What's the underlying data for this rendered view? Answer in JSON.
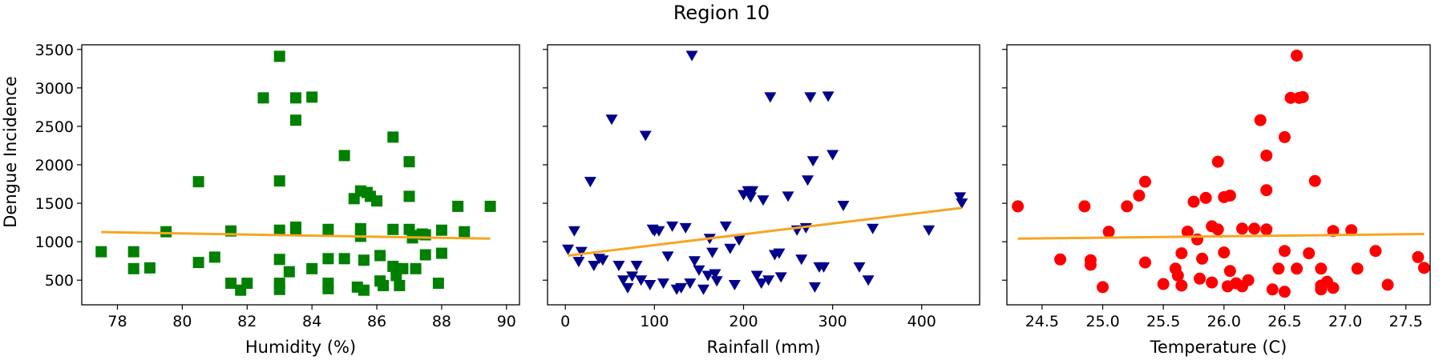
{
  "figure_title": "Region 10",
  "shared_ylabel": "Dengue Incidence",
  "colors": {
    "trend": "#f5a623",
    "humidity_marker": "#008000",
    "rainfall_marker": "#00008b",
    "temperature_marker": "#ff0000"
  },
  "chart_data": [
    {
      "type": "scatter",
      "marker": "square",
      "color": "#008000",
      "xlabel": "Humidity (%)",
      "ylabel": "Dengue Incidence",
      "xlim": [
        76.9,
        90.4
      ],
      "ylim": [
        180,
        3560
      ],
      "xticks": [
        78,
        80,
        82,
        84,
        86,
        88,
        90
      ],
      "yticks": [
        500,
        1000,
        1500,
        2000,
        2500,
        3000,
        3500
      ],
      "trend_line": {
        "x": [
          77.5,
          89.5
        ],
        "y": [
          1125,
          1040
        ]
      },
      "x": [
        77.5,
        78.5,
        78.5,
        79.0,
        79.5,
        80.5,
        80.5,
        81.0,
        81.5,
        81.5,
        81.8,
        82.0,
        82.5,
        83.0,
        83.0,
        83.0,
        83.0,
        83.0,
        83.0,
        83.3,
        83.5,
        83.5,
        83.5,
        83.5,
        84.0,
        84.0,
        84.5,
        84.5,
        84.5,
        84.5,
        85.0,
        85.0,
        85.3,
        85.4,
        85.5,
        85.5,
        85.5,
        85.6,
        85.6,
        85.7,
        85.8,
        86.0,
        86.1,
        86.1,
        86.2,
        86.5,
        86.5,
        86.5,
        86.6,
        86.6,
        86.7,
        86.8,
        87.0,
        87.0,
        87.0,
        87.1,
        87.1,
        87.2,
        87.4,
        87.5,
        87.5,
        87.9,
        88.0,
        88.0,
        88.5,
        88.7,
        89.5
      ],
      "y": [
        870,
        870,
        650,
        660,
        1130,
        1780,
        730,
        800,
        1140,
        460,
        370,
        460,
        2870,
        3410,
        1790,
        1150,
        770,
        460,
        380,
        610,
        2870,
        2580,
        1190,
        1160,
        2880,
        650,
        1160,
        780,
        460,
        390,
        2120,
        780,
        1560,
        410,
        1660,
        1170,
        1070,
        370,
        760,
        1640,
        1590,
        1530,
        820,
        490,
        430,
        2360,
        1160,
        680,
        650,
        560,
        430,
        650,
        2040,
        1590,
        1160,
        1080,
        1050,
        650,
        1100,
        1090,
        830,
        460,
        1150,
        850,
        1460,
        1130,
        1460
      ]
    },
    {
      "type": "scatter",
      "marker": "triangle-down",
      "color": "#00008b",
      "xlabel": "Rainfall (mm)",
      "ylabel": "",
      "xlim": [
        -20,
        465
      ],
      "ylim": [
        180,
        3560
      ],
      "xticks": [
        0,
        100,
        200,
        300,
        400
      ],
      "yticks": [
        500,
        1000,
        1500,
        2000,
        2500,
        3000,
        3500
      ],
      "trend_line": {
        "x": [
          3,
          445
        ],
        "y": [
          820,
          1440
        ]
      },
      "x": [
        3,
        10,
        15,
        18,
        28,
        32,
        38,
        42,
        52,
        60,
        65,
        70,
        75,
        80,
        85,
        90,
        95,
        98,
        100,
        105,
        110,
        115,
        120,
        125,
        130,
        135,
        140,
        142,
        145,
        150,
        155,
        160,
        162,
        165,
        168,
        170,
        180,
        185,
        190,
        195,
        200,
        205,
        208,
        210,
        215,
        220,
        222,
        228,
        230,
        235,
        240,
        242,
        250,
        260,
        265,
        270,
        272,
        275,
        278,
        280,
        285,
        290,
        295,
        300,
        312,
        330,
        340,
        345,
        408,
        443,
        445
      ],
      "y": [
        900,
        1140,
        740,
        870,
        1780,
        690,
        780,
        760,
        2590,
        690,
        500,
        400,
        550,
        690,
        500,
        2380,
        440,
        1160,
        1140,
        1140,
        460,
        810,
        1200,
        380,
        400,
        1180,
        460,
        3420,
        750,
        630,
        380,
        560,
        1040,
        860,
        580,
        490,
        1200,
        910,
        440,
        1020,
        1610,
        1660,
        1580,
        1660,
        560,
        460,
        1540,
        500,
        2880,
        830,
        850,
        540,
        1590,
        1150,
        770,
        1180,
        1800,
        2880,
        2050,
        410,
        670,
        670,
        2890,
        2130,
        1470,
        670,
        500,
        1170,
        1150,
        1580,
        1500
      ]
    },
    {
      "type": "scatter",
      "marker": "circle",
      "color": "#ff0000",
      "xlabel": "Temperature (C)",
      "ylabel": "",
      "xlim": [
        24.21,
        27.7
      ],
      "ylim": [
        180,
        3560
      ],
      "xticks": [
        24.5,
        25.0,
        25.5,
        26.0,
        26.5,
        27.0,
        27.5
      ],
      "yticks": [
        500,
        1000,
        1500,
        2000,
        2500,
        3000,
        3500
      ],
      "trend_line": {
        "x": [
          24.3,
          27.65
        ],
        "y": [
          1040,
          1100
        ]
      },
      "x": [
        24.3,
        24.65,
        24.85,
        24.9,
        24.9,
        25.0,
        25.05,
        25.2,
        25.3,
        25.35,
        25.35,
        25.5,
        25.6,
        25.62,
        25.65,
        25.65,
        25.7,
        25.7,
        25.75,
        25.78,
        25.8,
        25.82,
        25.85,
        25.9,
        25.9,
        25.95,
        25.95,
        26.0,
        26.0,
        26.03,
        26.05,
        26.05,
        26.1,
        26.15,
        26.15,
        26.2,
        26.25,
        26.3,
        26.35,
        26.35,
        26.35,
        26.4,
        26.45,
        26.5,
        26.5,
        26.5,
        26.55,
        26.6,
        26.6,
        26.62,
        26.65,
        26.7,
        26.75,
        26.8,
        26.8,
        26.8,
        26.85,
        26.9,
        26.9,
        27.05,
        27.1,
        27.25,
        27.35,
        27.6,
        27.65
      ],
      "y": [
        1460,
        770,
        1460,
        760,
        700,
        410,
        1130,
        1460,
        1600,
        1780,
        730,
        450,
        650,
        560,
        850,
        430,
        1130,
        1130,
        1520,
        1030,
        520,
        780,
        1570,
        1200,
        470,
        2040,
        1160,
        1580,
        860,
        420,
        1600,
        620,
        460,
        1170,
        420,
        500,
        1170,
        2580,
        1160,
        2120,
        1670,
        380,
        650,
        350,
        2360,
        880,
        2870,
        3420,
        650,
        2870,
        2880,
        850,
        1790,
        650,
        430,
        380,
        480,
        1140,
        400,
        1150,
        650,
        880,
        440,
        800,
        660
      ]
    }
  ]
}
